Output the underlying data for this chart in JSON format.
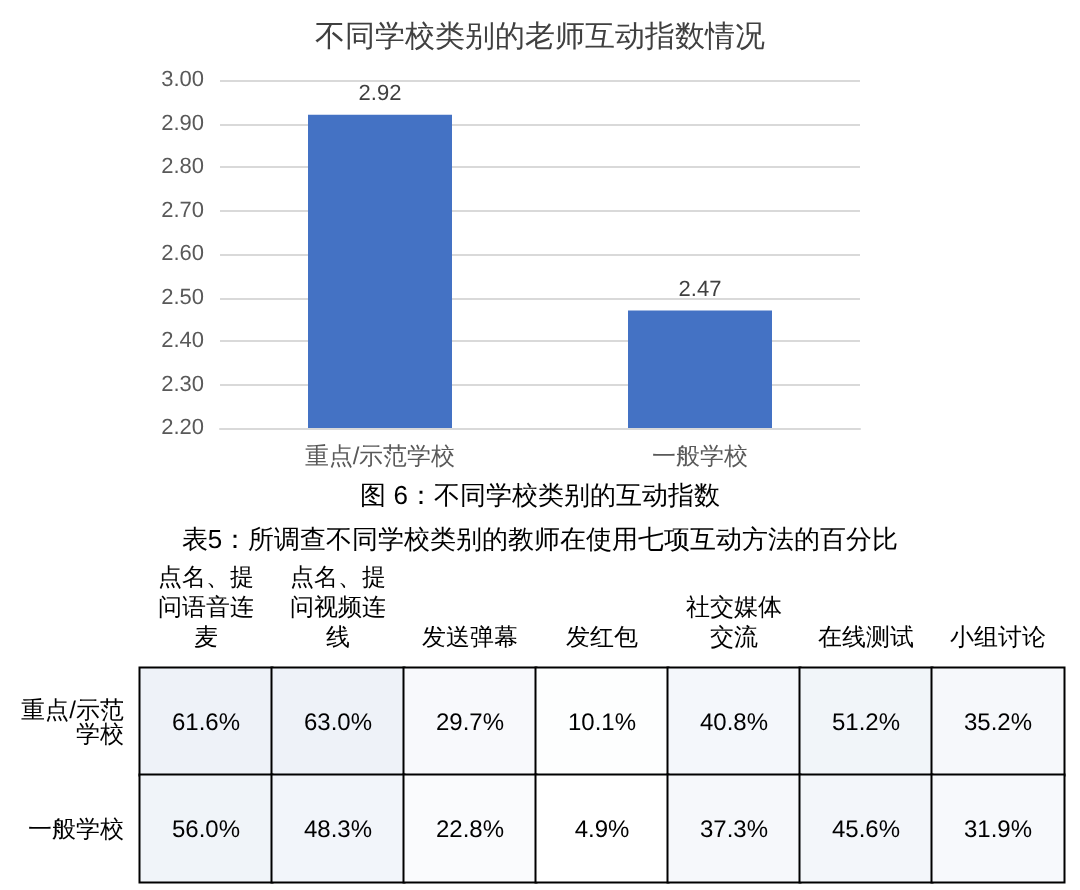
{
  "chart_data": [
    {
      "type": "bar",
      "title": "不同学校类别的老师互动指数情况",
      "categories": [
        "重点/示范学校",
        "一般学校"
      ],
      "values": [
        2.92,
        2.47
      ],
      "color": "#4472c4",
      "ylim": [
        2.2,
        3.0
      ],
      "yticks": [
        {
          "value": 2.2,
          "label": "2.20"
        },
        {
          "value": 2.3,
          "label": "2.30"
        },
        {
          "value": 2.4,
          "label": "2.40"
        },
        {
          "value": 2.5,
          "label": "2.50"
        },
        {
          "value": 2.6,
          "label": "2.60"
        },
        {
          "value": 2.7,
          "label": "2.70"
        },
        {
          "value": 2.8,
          "label": "2.80"
        },
        {
          "value": 2.9,
          "label": "2.90"
        },
        {
          "value": 3.0,
          "label": "3.00"
        }
      ],
      "grid": "y",
      "data_labels": true,
      "annotations": [
        "图 6：不同学校类别的互动指数"
      ]
    },
    {
      "type": "heatmap",
      "title": "表5：所调查不同学校类别的教师在使用七项互动方法的百分比",
      "categories": [
        "点名、提问语音连麦",
        "点名、提问视频连线",
        "发送弹幕",
        "发红包",
        "社交媒体交流",
        "在线测试",
        "小组讨论"
      ],
      "y_categories": [
        "重点/示范学校",
        "一般学校"
      ],
      "cells": [
        [
          61.6,
          63.0,
          29.7,
          10.1,
          40.8,
          51.2,
          35.2
        ],
        [
          56.0,
          48.3,
          22.8,
          4.9,
          37.3,
          45.6,
          31.9
        ]
      ],
      "cell_labels": [
        [
          "61.6%",
          "63.0%",
          "29.7%",
          "10.1%",
          "40.8%",
          "51.2%",
          "35.2%"
        ],
        [
          "56.0%",
          "48.3%",
          "22.8%",
          "4.9%",
          "37.3%",
          "45.6%",
          "31.9%"
        ]
      ]
    }
  ]
}
